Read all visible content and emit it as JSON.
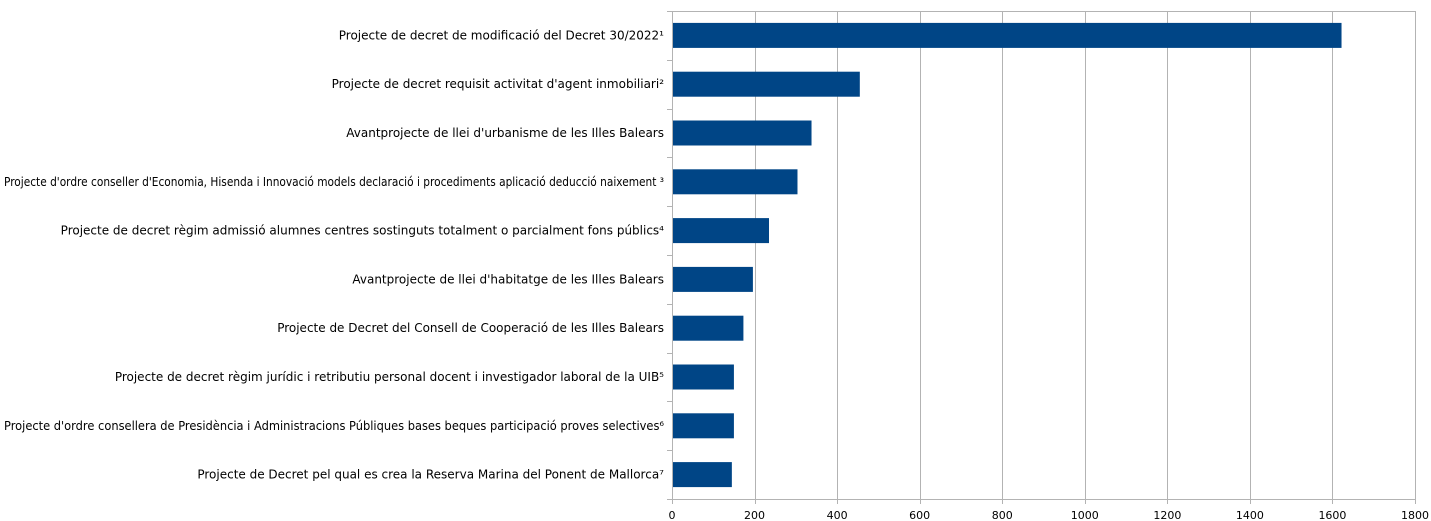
{
  "chart_data": {
    "type": "bar",
    "orientation": "horizontal",
    "categories": [
      "Projecte de decret de modificació del Decret 30/2022¹",
      "Projecte de decret requisit activitat d'agent inmobiliari²",
      "Avantprojecte de llei d'urbanisme de les Illes Balears",
      "Projecte d'ordre conseller d'Economia, Hisenda i Innovació models declaració i procediments aplicació deducció naixement ³",
      "Projecte de decret règim admissió alumnes centres sostinguts totalment o parcialment fons públics⁴",
      "Avantprojecte de llei d'habitatge de les Illes Balears",
      "Projecte de Decret del Consell de Cooperació de les Illes Balears",
      "Projecte de decret règim jurídic i retributiu personal docent i investigador laboral de la UIB⁵",
      "Projecte d'ordre consellera de Presidència i Administracions Públiques bases beques participació proves selectives⁶",
      "Projecte de Decret pel qual es crea la Reserva Marina del Ponent de Mallorca⁷"
    ],
    "series": [
      {
        "values": [
          1622,
          455,
          338,
          304,
          235,
          196,
          173,
          150,
          150,
          145
        ],
        "color": "#004586"
      }
    ],
    "xlim": [
      0,
      1800
    ],
    "xticks": [
      0,
      200,
      400,
      600,
      800,
      1000,
      1200,
      1400,
      1600,
      1800
    ],
    "grid": true,
    "legend": "none",
    "title": "",
    "xlabel": "",
    "ylabel": ""
  }
}
